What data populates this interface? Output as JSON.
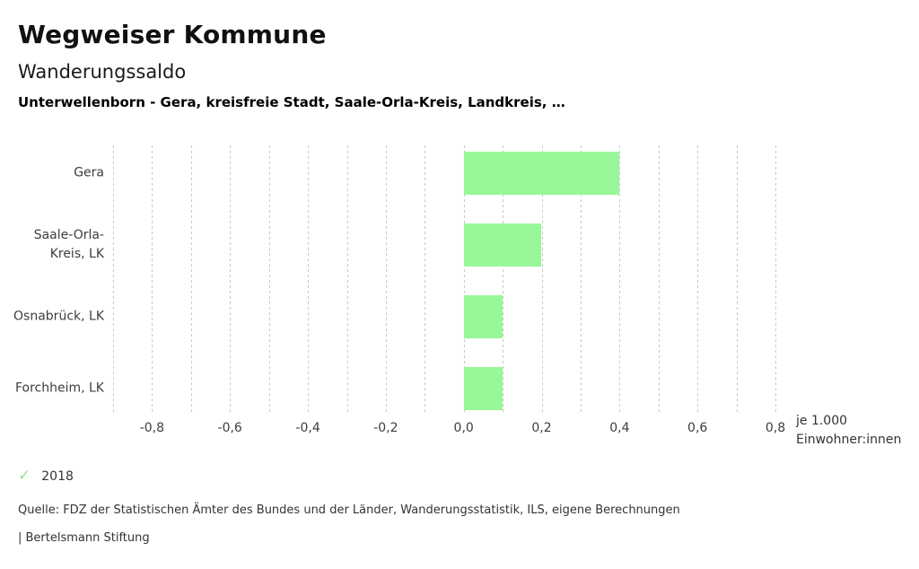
{
  "header": {
    "title": "Wegweiser Kommune",
    "subtitle": "Wanderungssaldo",
    "context": "Unterwellenborn - Gera, kreisfreie Stadt, Saale-Orla-Kreis, Landkreis, …"
  },
  "chart_data": {
    "type": "bar",
    "orientation": "horizontal",
    "categories": [
      "Gera",
      "Saale-Orla-Kreis, LK",
      "Osnabrück, LK",
      "Forchheim, LK"
    ],
    "values": [
      0.4,
      0.2,
      0.1,
      0.1
    ],
    "series_name": "2018",
    "xlim": [
      -0.9,
      0.8
    ],
    "x_tick_values": [
      -0.8,
      -0.6,
      -0.4,
      -0.2,
      0.0,
      0.2,
      0.4,
      0.6,
      0.8
    ],
    "x_tick_labels": [
      "-0,8",
      "-0,6",
      "-0,4",
      "-0,2",
      "0,0",
      "0,2",
      "0,4",
      "0,6",
      "0,8"
    ],
    "grid": true,
    "grid_step": 0.1,
    "bar_color": "#98f798",
    "gridline_color": "#c9c9c9",
    "unit_lines": [
      "je 1.000",
      "Einwohner:innen"
    ]
  },
  "legend": {
    "check_icon": "check-mark",
    "check_glyph": "✓",
    "check_color": "#8fe78f",
    "year_label": "2018"
  },
  "footer": {
    "source": "Quelle: FDZ der Statistischen Ämter des Bundes und der Länder, Wanderungsstatistik, ILS, eigene Berechnungen",
    "attribution": "| Bertelsmann Stiftung"
  }
}
